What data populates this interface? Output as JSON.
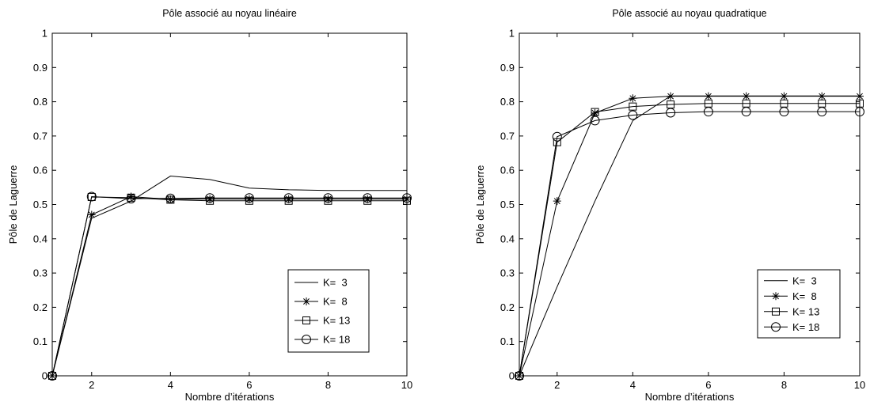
{
  "chart_data": [
    {
      "type": "line",
      "title": "Pôle associé au noyau linéaire",
      "xlabel": "Nombre d’itérations",
      "ylabel": "Pôle de Laguerre",
      "xlim": [
        1,
        10
      ],
      "ylim": [
        0,
        1
      ],
      "xticks": [
        2,
        4,
        6,
        8,
        10
      ],
      "yticks": [
        0,
        0.1,
        0.2,
        0.3,
        0.4,
        0.5,
        0.6,
        0.7,
        0.8,
        0.9,
        1
      ],
      "ytick_labels": [
        "0",
        "0.1",
        "0.2",
        "0.3",
        "0.4",
        "0.5",
        "0.6",
        "0.7",
        "0.8",
        "0.9",
        "1"
      ],
      "grid": false,
      "legend_position": "lower-right",
      "x": [
        1,
        2,
        3,
        4,
        5,
        6,
        7,
        8,
        9,
        10
      ],
      "series": [
        {
          "name": "K=  3",
          "marker": "none",
          "values": [
            0,
            0.46,
            0.51,
            0.583,
            0.573,
            0.548,
            0.543,
            0.541,
            0.541,
            0.541
          ]
        },
        {
          "name": "K=  8",
          "marker": "star",
          "values": [
            0,
            0.47,
            0.523,
            0.515,
            0.516,
            0.516,
            0.516,
            0.516,
            0.516,
            0.516
          ]
        },
        {
          "name": "K= 13",
          "marker": "square",
          "values": [
            0,
            0.522,
            0.52,
            0.514,
            0.511,
            0.511,
            0.511,
            0.511,
            0.511,
            0.511
          ]
        },
        {
          "name": "K= 18",
          "marker": "circle",
          "values": [
            0,
            0.523,
            0.517,
            0.518,
            0.519,
            0.519,
            0.519,
            0.519,
            0.519,
            0.519
          ]
        }
      ]
    },
    {
      "type": "line",
      "title": "Pôle associé au noyau quadratique",
      "xlabel": "Nombre d’itérations",
      "ylabel": "Pôle de Laguerre",
      "xlim": [
        1,
        10
      ],
      "ylim": [
        0,
        1
      ],
      "xticks": [
        2,
        4,
        6,
        8,
        10
      ],
      "yticks": [
        0,
        0.1,
        0.2,
        0.3,
        0.4,
        0.5,
        0.6,
        0.7,
        0.8,
        0.9,
        1
      ],
      "ytick_labels": [
        "0",
        "0.1",
        "0.2",
        "0.3",
        "0.4",
        "0.5",
        "0.6",
        "0.7",
        "0.8",
        "0.9",
        "1"
      ],
      "grid": false,
      "legend_position": "lower-right",
      "x": [
        1,
        2,
        3,
        4,
        5,
        6,
        7,
        8,
        9,
        10
      ],
      "series": [
        {
          "name": "K=  3",
          "marker": "none",
          "values": [
            0,
            0.26,
            0.51,
            0.745,
            0.817,
            0.817,
            0.817,
            0.817,
            0.817,
            0.817
          ]
        },
        {
          "name": "K=  8",
          "marker": "star",
          "values": [
            0,
            0.51,
            0.767,
            0.81,
            0.816,
            0.816,
            0.816,
            0.816,
            0.816,
            0.816
          ]
        },
        {
          "name": "K= 13",
          "marker": "square",
          "values": [
            0,
            0.682,
            0.77,
            0.786,
            0.792,
            0.795,
            0.795,
            0.795,
            0.795,
            0.795
          ]
        },
        {
          "name": "K= 18",
          "marker": "circle",
          "values": [
            0,
            0.698,
            0.745,
            0.761,
            0.768,
            0.771,
            0.771,
            0.771,
            0.771,
            0.771
          ]
        }
      ]
    }
  ]
}
